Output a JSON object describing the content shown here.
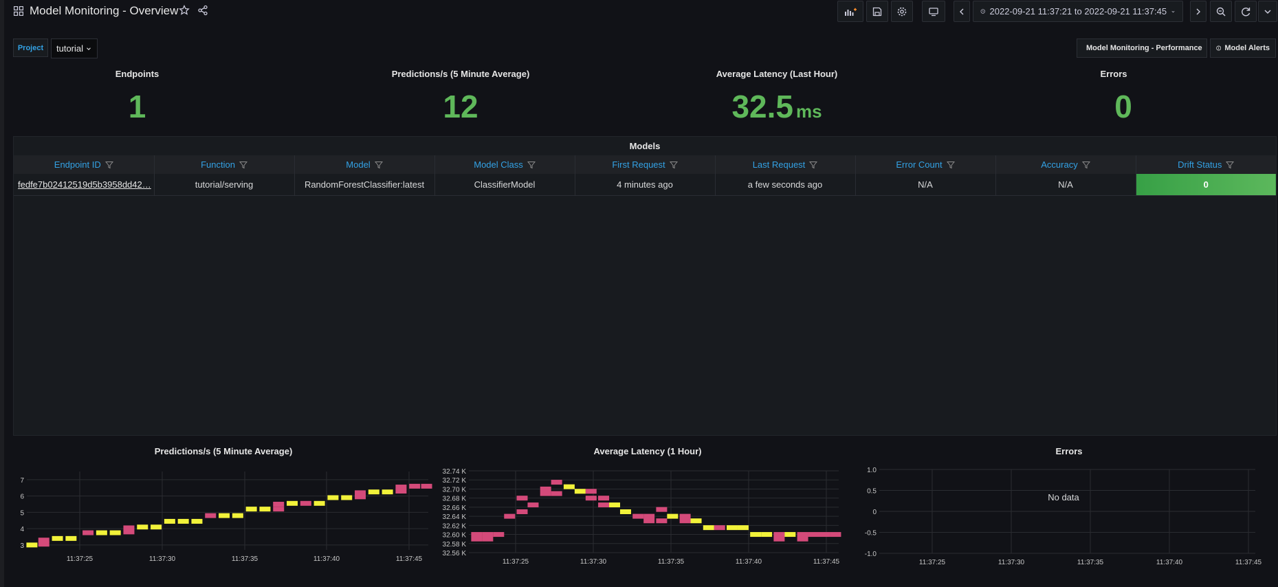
{
  "header": {
    "title": "Model Monitoring - Overview",
    "time_range": "2022-09-21 11:37:21 to 2022-09-21 11:37:45",
    "toolbar_icons": [
      "add-panel-icon",
      "save-icon",
      "settings-icon",
      "tv-mode-icon",
      "time-back-icon",
      "clock-icon",
      "time-forward-icon",
      "zoom-out-icon",
      "refresh-icon",
      "refresh-interval-dropdown-icon"
    ]
  },
  "variables": {
    "project_label": "Project",
    "project_value": "tutorial"
  },
  "links": {
    "performance": "Model Monitoring - Performance",
    "alerts": "Model Alerts"
  },
  "stats": {
    "endpoints": {
      "title": "Endpoints",
      "value": "1"
    },
    "predictions": {
      "title": "Predictions/s (5 Minute Average)",
      "value": "12"
    },
    "latency": {
      "title": "Average Latency (Last Hour)",
      "value": "32.5",
      "unit": "ms"
    },
    "errors": {
      "title": "Errors",
      "value": "0"
    }
  },
  "models_table": {
    "title": "Models",
    "columns": [
      "Endpoint ID",
      "Function",
      "Model",
      "Model Class",
      "First Request",
      "Last Request",
      "Error Count",
      "Accuracy",
      "Drift Status"
    ],
    "rows": [
      [
        "fedfe7b02412519d5b3958dd42…",
        "tutorial/serving",
        "RandomForestClassifier:latest",
        "ClassifierModel",
        "4 minutes ago",
        "a few seconds ago",
        "N/A",
        "N/A",
        "0"
      ]
    ]
  },
  "colors": {
    "accent_blue": "#33a2e5",
    "stat_green": "#5fb85a",
    "series_yellow": "#f2f23a",
    "series_pink": "#d44a7a"
  },
  "chart_data": [
    {
      "type": "heatmap",
      "title": "Predictions/s (5 Minute Average)",
      "x_ticks": [
        "11:37:25",
        "11:37:30",
        "11:37:35",
        "11:37:40",
        "11:37:45"
      ],
      "y_ticks": [
        "3",
        "4",
        "5",
        "6",
        "7"
      ],
      "ylim": [
        2.7,
        7.5
      ],
      "x_range_seconds": [
        22,
        45.6
      ],
      "points": [
        {
          "t": 22.3,
          "y": 3.0,
          "c": "y"
        },
        {
          "t": 23.0,
          "y": 3.3,
          "c": "p"
        },
        {
          "t": 23.0,
          "y": 3.05,
          "c": "p"
        },
        {
          "t": 23.8,
          "y": 3.4,
          "c": "y"
        },
        {
          "t": 24.6,
          "y": 3.4,
          "c": "y"
        },
        {
          "t": 25.6,
          "y": 3.75,
          "c": "p"
        },
        {
          "t": 26.4,
          "y": 3.75,
          "c": "y"
        },
        {
          "t": 27.2,
          "y": 3.75,
          "c": "y"
        },
        {
          "t": 28.0,
          "y": 4.05,
          "c": "p"
        },
        {
          "t": 28.0,
          "y": 3.8,
          "c": "p"
        },
        {
          "t": 28.8,
          "y": 4.1,
          "c": "y"
        },
        {
          "t": 29.6,
          "y": 4.1,
          "c": "y"
        },
        {
          "t": 30.4,
          "y": 4.45,
          "c": "y"
        },
        {
          "t": 31.2,
          "y": 4.45,
          "c": "y"
        },
        {
          "t": 32.0,
          "y": 4.45,
          "c": "y"
        },
        {
          "t": 32.8,
          "y": 4.8,
          "c": "p"
        },
        {
          "t": 33.6,
          "y": 4.8,
          "c": "y"
        },
        {
          "t": 34.4,
          "y": 4.8,
          "c": "y"
        },
        {
          "t": 35.2,
          "y": 5.2,
          "c": "y"
        },
        {
          "t": 36.0,
          "y": 5.2,
          "c": "y"
        },
        {
          "t": 36.8,
          "y": 5.5,
          "c": "p"
        },
        {
          "t": 36.8,
          "y": 5.2,
          "c": "p"
        },
        {
          "t": 37.6,
          "y": 5.55,
          "c": "y"
        },
        {
          "t": 38.4,
          "y": 5.55,
          "c": "p"
        },
        {
          "t": 39.2,
          "y": 5.55,
          "c": "y"
        },
        {
          "t": 40.0,
          "y": 5.9,
          "c": "y"
        },
        {
          "t": 40.8,
          "y": 5.9,
          "c": "y"
        },
        {
          "t": 41.6,
          "y": 6.2,
          "c": "p"
        },
        {
          "t": 41.6,
          "y": 5.95,
          "c": "p"
        },
        {
          "t": 42.4,
          "y": 6.25,
          "c": "y"
        },
        {
          "t": 43.2,
          "y": 6.25,
          "c": "y"
        },
        {
          "t": 44.0,
          "y": 6.55,
          "c": "p"
        },
        {
          "t": 44.0,
          "y": 6.3,
          "c": "p"
        },
        {
          "t": 44.8,
          "y": 6.6,
          "c": "p"
        },
        {
          "t": 45.5,
          "y": 6.6,
          "c": "p"
        }
      ]
    },
    {
      "type": "heatmap",
      "title": "Average Latency (1 Hour)",
      "x_ticks": [
        "11:37:25",
        "11:37:30",
        "11:37:35",
        "11:37:40",
        "11:37:45"
      ],
      "y_ticks": [
        "32.74 K",
        "32.72 K",
        "32.70 K",
        "32.68 K",
        "32.66 K",
        "32.64 K",
        "32.62 K",
        "32.60 K",
        "32.58 K",
        "32.56 K"
      ],
      "ylim": [
        32560,
        32740
      ],
      "x_range_seconds": [
        22,
        45.6
      ],
      "points": [
        {
          "t": 22.5,
          "y": 32600,
          "c": "p"
        },
        {
          "t": 22.5,
          "y": 32590,
          "c": "p"
        },
        {
          "t": 23.2,
          "y": 32600,
          "c": "p"
        },
        {
          "t": 23.2,
          "y": 32590,
          "c": "p"
        },
        {
          "t": 23.9,
          "y": 32600,
          "c": "p"
        },
        {
          "t": 24.6,
          "y": 32640,
          "c": "p"
        },
        {
          "t": 25.4,
          "y": 32680,
          "c": "p"
        },
        {
          "t": 25.4,
          "y": 32650,
          "c": "p"
        },
        {
          "t": 26.1,
          "y": 32665,
          "c": "p"
        },
        {
          "t": 26.9,
          "y": 32700,
          "c": "p"
        },
        {
          "t": 26.9,
          "y": 32690,
          "c": "p"
        },
        {
          "t": 27.6,
          "y": 32715,
          "c": "p"
        },
        {
          "t": 27.6,
          "y": 32690,
          "c": "p"
        },
        {
          "t": 28.4,
          "y": 32705,
          "c": "y"
        },
        {
          "t": 29.1,
          "y": 32695,
          "c": "y"
        },
        {
          "t": 29.8,
          "y": 32695,
          "c": "p"
        },
        {
          "t": 29.8,
          "y": 32680,
          "c": "p"
        },
        {
          "t": 30.6,
          "y": 32680,
          "c": "p"
        },
        {
          "t": 30.6,
          "y": 32665,
          "c": "p"
        },
        {
          "t": 31.3,
          "y": 32665,
          "c": "y"
        },
        {
          "t": 32.0,
          "y": 32650,
          "c": "y"
        },
        {
          "t": 32.8,
          "y": 32640,
          "c": "p"
        },
        {
          "t": 33.5,
          "y": 32640,
          "c": "p"
        },
        {
          "t": 33.5,
          "y": 32630,
          "c": "p"
        },
        {
          "t": 34.3,
          "y": 32655,
          "c": "p"
        },
        {
          "t": 34.3,
          "y": 32630,
          "c": "p"
        },
        {
          "t": 35.0,
          "y": 32640,
          "c": "y"
        },
        {
          "t": 35.8,
          "y": 32640,
          "c": "p"
        },
        {
          "t": 35.8,
          "y": 32630,
          "c": "p"
        },
        {
          "t": 36.5,
          "y": 32630,
          "c": "y"
        },
        {
          "t": 37.3,
          "y": 32615,
          "c": "y"
        },
        {
          "t": 38.0,
          "y": 32615,
          "c": "p"
        },
        {
          "t": 38.8,
          "y": 32615,
          "c": "y"
        },
        {
          "t": 39.5,
          "y": 32615,
          "c": "y"
        },
        {
          "t": 40.3,
          "y": 32600,
          "c": "y"
        },
        {
          "t": 41.0,
          "y": 32600,
          "c": "y"
        },
        {
          "t": 41.8,
          "y": 32600,
          "c": "p"
        },
        {
          "t": 41.8,
          "y": 32590,
          "c": "p"
        },
        {
          "t": 42.5,
          "y": 32600,
          "c": "y"
        },
        {
          "t": 43.3,
          "y": 32600,
          "c": "p"
        },
        {
          "t": 43.3,
          "y": 32590,
          "c": "p"
        },
        {
          "t": 44.0,
          "y": 32600,
          "c": "p"
        },
        {
          "t": 44.7,
          "y": 32600,
          "c": "p"
        },
        {
          "t": 45.4,
          "y": 32600,
          "c": "p"
        }
      ]
    },
    {
      "type": "line",
      "title": "Errors",
      "x_ticks": [
        "11:37:25",
        "11:37:30",
        "11:37:35",
        "11:37:40",
        "11:37:45"
      ],
      "y_ticks": [
        "1.0",
        "0.5",
        "0",
        "-0.5",
        "-1.0"
      ],
      "ylim": [
        -1.0,
        1.0
      ],
      "no_data_text": "No data",
      "series": []
    }
  ]
}
